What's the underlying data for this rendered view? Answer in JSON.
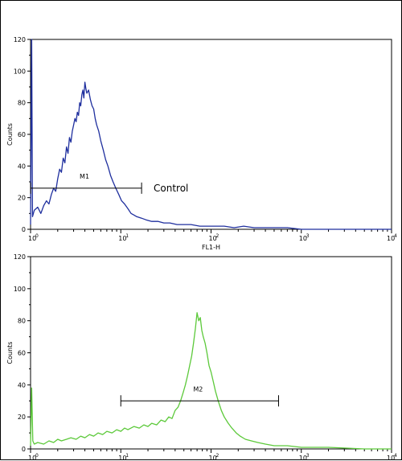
{
  "chart_data": [
    {
      "type": "line",
      "color": "#1f2f9e",
      "xlabel": "FL1-H",
      "ylabel": "Counts",
      "xscale": "log",
      "xlim": [
        1,
        10000
      ],
      "ylim": [
        0,
        120
      ],
      "yticks": [
        0,
        20,
        40,
        60,
        80,
        100,
        120
      ],
      "xticks": [
        {
          "base": "10",
          "exp": "0"
        },
        {
          "base": "10",
          "exp": "1"
        },
        {
          "base": "10",
          "exp": "2"
        },
        {
          "base": "10",
          "exp": "3"
        },
        {
          "base": "10",
          "exp": "4"
        }
      ],
      "marker": {
        "label": "M1",
        "from": 1,
        "to": 17,
        "y": 26
      },
      "annotation": "Control",
      "peak": {
        "x": 4,
        "y": 93
      },
      "series": [
        {
          "values": [
            [
              1.0,
              3
            ],
            [
              1.03,
              140
            ],
            [
              1.05,
              8
            ],
            [
              1.1,
              12
            ],
            [
              1.2,
              14
            ],
            [
              1.3,
              10
            ],
            [
              1.4,
              15
            ],
            [
              1.5,
              18
            ],
            [
              1.6,
              16
            ],
            [
              1.7,
              22
            ],
            [
              1.8,
              26
            ],
            [
              1.9,
              24
            ],
            [
              2.0,
              32
            ],
            [
              2.1,
              38
            ],
            [
              2.2,
              36
            ],
            [
              2.3,
              45
            ],
            [
              2.4,
              42
            ],
            [
              2.5,
              52
            ],
            [
              2.6,
              48
            ],
            [
              2.7,
              58
            ],
            [
              2.8,
              55
            ],
            [
              2.9,
              62
            ],
            [
              3.0,
              66
            ],
            [
              3.1,
              70
            ],
            [
              3.2,
              68
            ],
            [
              3.3,
              74
            ],
            [
              3.4,
              72
            ],
            [
              3.5,
              80
            ],
            [
              3.6,
              78
            ],
            [
              3.7,
              85
            ],
            [
              3.8,
              88
            ],
            [
              3.9,
              83
            ],
            [
              4.0,
              93
            ],
            [
              4.1,
              89
            ],
            [
              4.2,
              86
            ],
            [
              4.4,
              88
            ],
            [
              4.6,
              82
            ],
            [
              4.8,
              78
            ],
            [
              5.0,
              76
            ],
            [
              5.2,
              70
            ],
            [
              5.4,
              66
            ],
            [
              5.7,
              62
            ],
            [
              6.0,
              56
            ],
            [
              6.4,
              50
            ],
            [
              6.8,
              44
            ],
            [
              7.2,
              40
            ],
            [
              7.7,
              34
            ],
            [
              8.2,
              30
            ],
            [
              8.8,
              26
            ],
            [
              9.5,
              22
            ],
            [
              10.2,
              18
            ],
            [
              11,
              16
            ],
            [
              12,
              13
            ],
            [
              13,
              10
            ],
            [
              14,
              9
            ],
            [
              15,
              8
            ],
            [
              17,
              7
            ],
            [
              19,
              6
            ],
            [
              22,
              5
            ],
            [
              26,
              5
            ],
            [
              30,
              4
            ],
            [
              35,
              4
            ],
            [
              42,
              3
            ],
            [
              50,
              3
            ],
            [
              60,
              3
            ],
            [
              75,
              2
            ],
            [
              90,
              2
            ],
            [
              110,
              2
            ],
            [
              140,
              2
            ],
            [
              180,
              1
            ],
            [
              230,
              2
            ],
            [
              300,
              1
            ],
            [
              400,
              1
            ],
            [
              550,
              1
            ],
            [
              700,
              1
            ],
            [
              1000,
              0
            ],
            [
              2000,
              0
            ],
            [
              10000,
              0
            ]
          ]
        }
      ]
    },
    {
      "type": "line",
      "color": "#5cc93a",
      "xlabel": "",
      "ylabel": "Counts",
      "xscale": "log",
      "xlim": [
        1,
        10000
      ],
      "ylim": [
        0,
        120
      ],
      "yticks": [
        0,
        20,
        40,
        60,
        80,
        100,
        120
      ],
      "xticks": [
        {
          "base": "10",
          "exp": "0"
        },
        {
          "base": "10",
          "exp": "1"
        },
        {
          "base": "10",
          "exp": "2"
        },
        {
          "base": "10",
          "exp": "3"
        },
        {
          "base": "10",
          "exp": "4"
        }
      ],
      "marker": {
        "label": "M2",
        "from": 10,
        "to": 560,
        "y": 30
      },
      "annotation": "",
      "peak": {
        "x": 70,
        "y": 85
      },
      "series": [
        {
          "values": [
            [
              1.0,
              2
            ],
            [
              1.03,
              38
            ],
            [
              1.06,
              5
            ],
            [
              1.1,
              3
            ],
            [
              1.2,
              4
            ],
            [
              1.4,
              3
            ],
            [
              1.6,
              5
            ],
            [
              1.8,
              4
            ],
            [
              2.0,
              6
            ],
            [
              2.2,
              5
            ],
            [
              2.5,
              6
            ],
            [
              2.8,
              7
            ],
            [
              3.2,
              6
            ],
            [
              3.6,
              8
            ],
            [
              4.0,
              7
            ],
            [
              4.5,
              9
            ],
            [
              5.0,
              8
            ],
            [
              5.6,
              10
            ],
            [
              6.3,
              9
            ],
            [
              7.0,
              11
            ],
            [
              8.0,
              10
            ],
            [
              9.0,
              12
            ],
            [
              10,
              11
            ],
            [
              11,
              13
            ],
            [
              12,
              12
            ],
            [
              14,
              14
            ],
            [
              16,
              13
            ],
            [
              18,
              15
            ],
            [
              20,
              14
            ],
            [
              22,
              16
            ],
            [
              25,
              15
            ],
            [
              28,
              18
            ],
            [
              31,
              17
            ],
            [
              34,
              20
            ],
            [
              37,
              19
            ],
            [
              40,
              24
            ],
            [
              43,
              26
            ],
            [
              46,
              30
            ],
            [
              49,
              35
            ],
            [
              52,
              40
            ],
            [
              55,
              46
            ],
            [
              58,
              52
            ],
            [
              61,
              58
            ],
            [
              64,
              66
            ],
            [
              67,
              75
            ],
            [
              70,
              85
            ],
            [
              73,
              80
            ],
            [
              76,
              82
            ],
            [
              79,
              74
            ],
            [
              82,
              70
            ],
            [
              86,
              66
            ],
            [
              90,
              60
            ],
            [
              95,
              52
            ],
            [
              100,
              48
            ],
            [
              106,
              42
            ],
            [
              112,
              36
            ],
            [
              120,
              30
            ],
            [
              130,
              24
            ],
            [
              140,
              20
            ],
            [
              155,
              16
            ],
            [
              170,
              13
            ],
            [
              190,
              10
            ],
            [
              210,
              8
            ],
            [
              240,
              6
            ],
            [
              280,
              5
            ],
            [
              330,
              4
            ],
            [
              400,
              3
            ],
            [
              500,
              2
            ],
            [
              700,
              2
            ],
            [
              1000,
              1
            ],
            [
              2000,
              1
            ],
            [
              5000,
              0
            ],
            [
              10000,
              0
            ]
          ]
        }
      ]
    }
  ]
}
